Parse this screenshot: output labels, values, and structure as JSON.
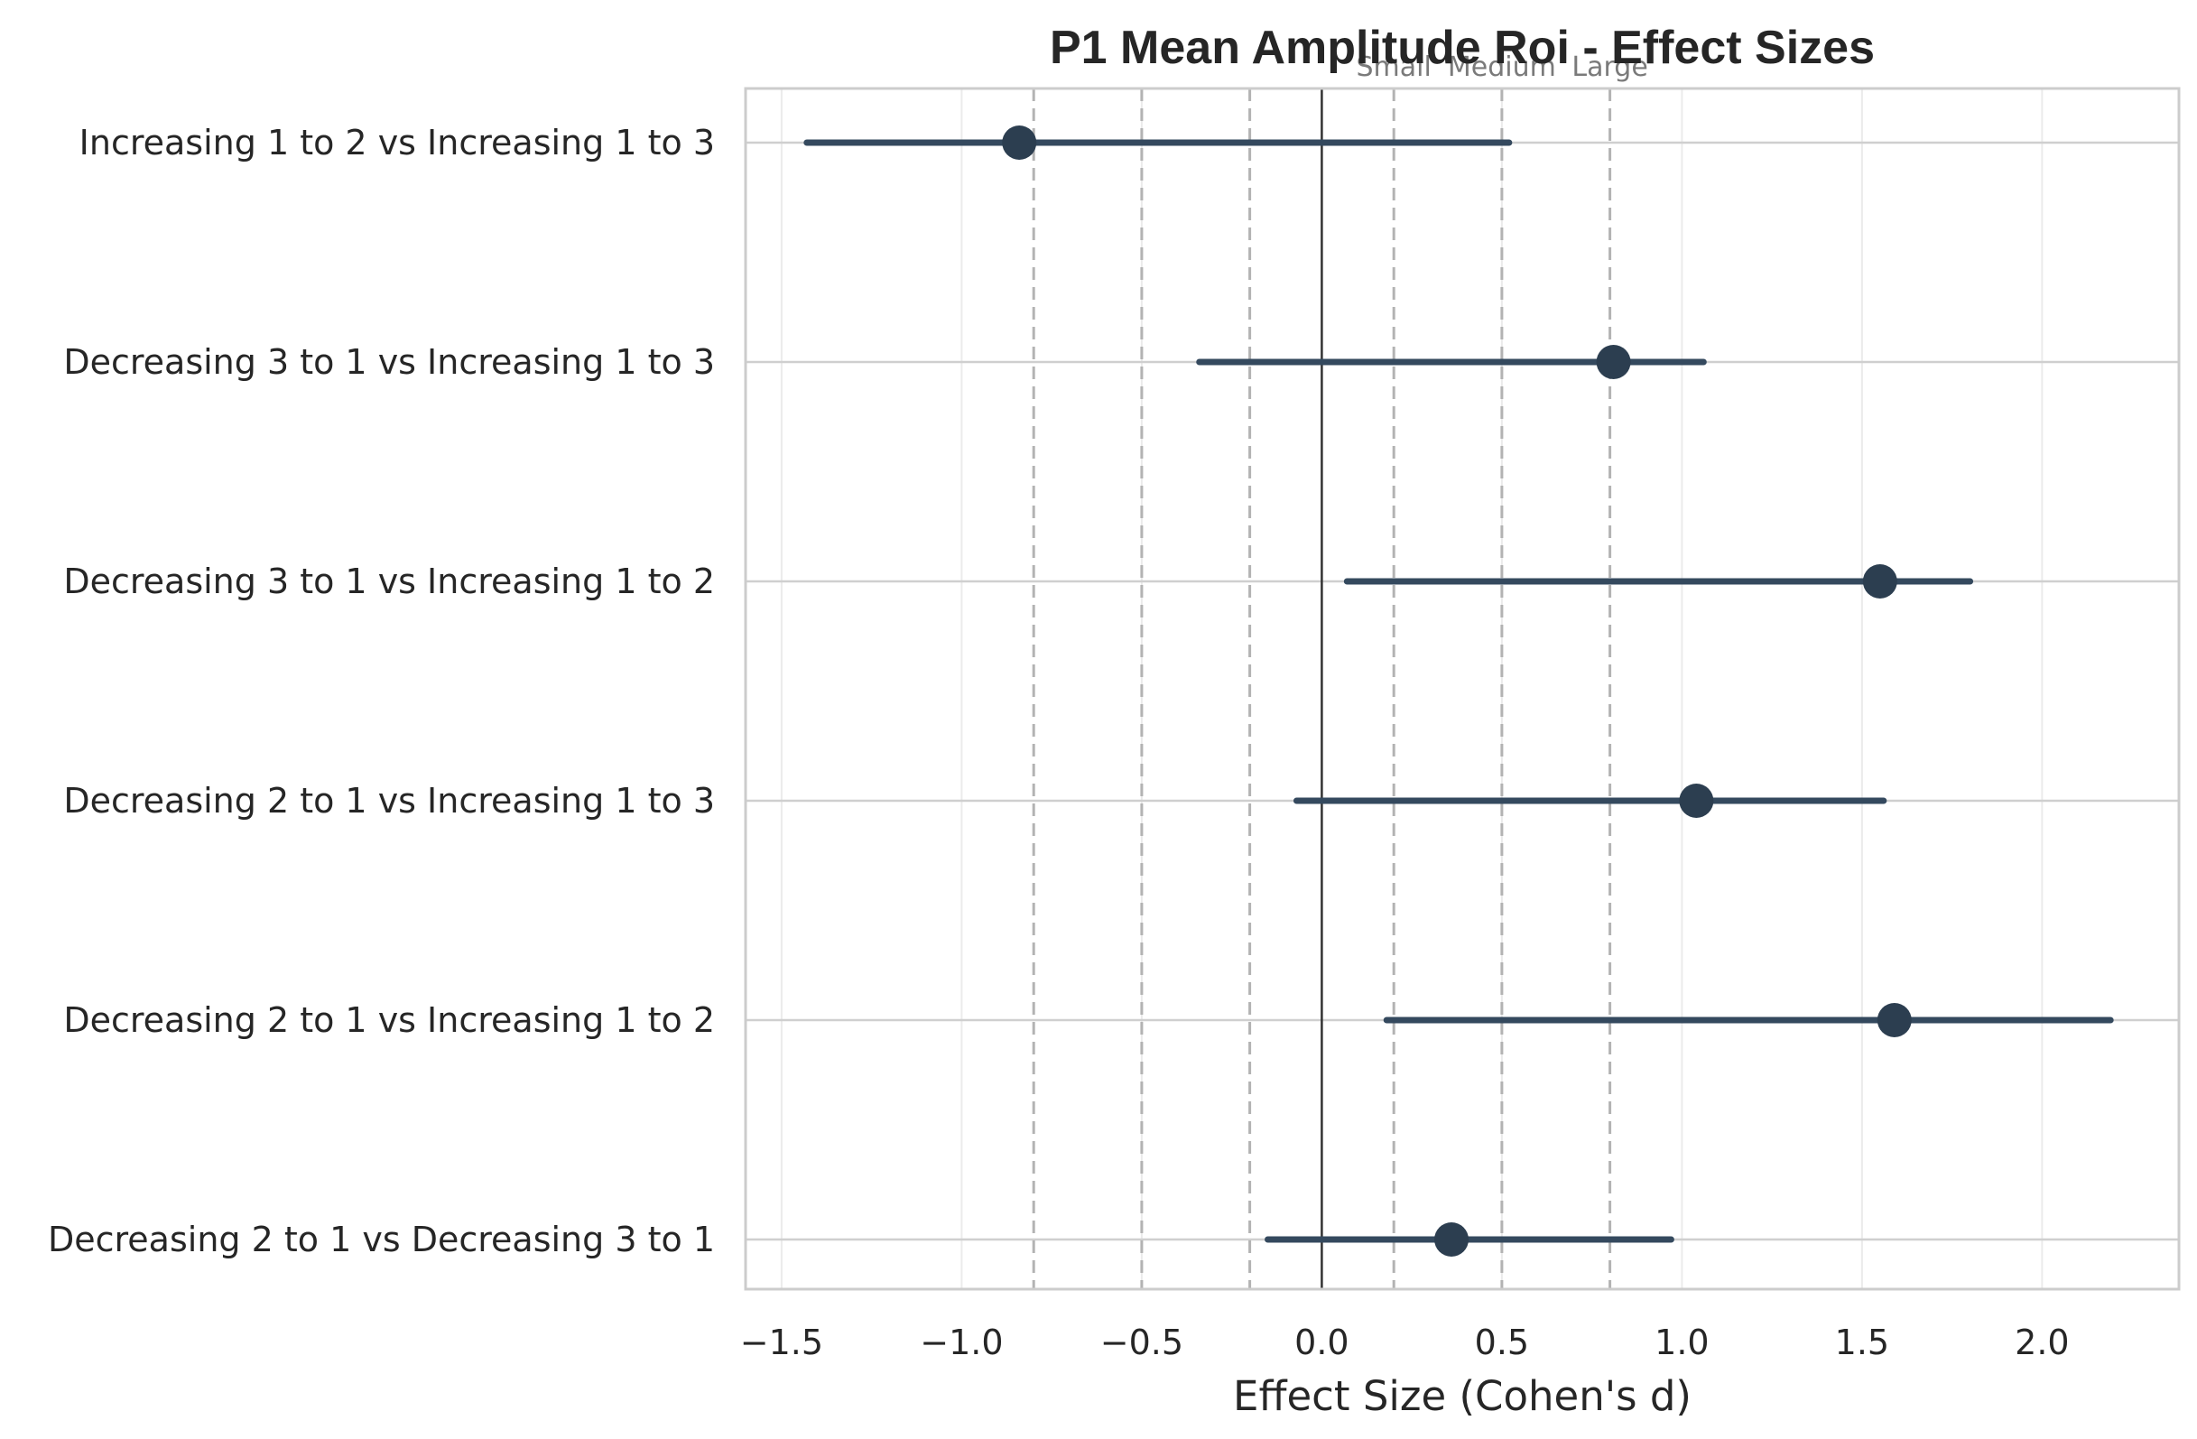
{
  "chart_data": {
    "type": "scatter",
    "title": "P1 Mean Amplitude Roi - Effect Sizes",
    "xlabel": "Effect Size (Cohen's d)",
    "ylabel": "",
    "xlim": [
      -1.6,
      2.38
    ],
    "xticks": [
      -1.5,
      -1.0,
      -0.5,
      0.0,
      0.5,
      1.0,
      1.5,
      2.0
    ],
    "xtick_labels": [
      "−1.5",
      "−1.0",
      "−0.5",
      "0.0",
      "0.5",
      "1.0",
      "1.5",
      "2.0"
    ],
    "grid": true,
    "zero_line": 0.0,
    "reference_lines": [
      -0.8,
      -0.5,
      -0.2,
      0.2,
      0.5,
      0.8
    ],
    "reference_labels": [
      {
        "text": "Small",
        "x": 0.2
      },
      {
        "text": "Medium",
        "x": 0.5
      },
      {
        "text": "Large",
        "x": 0.8
      }
    ],
    "marker_color": "#2c3e50",
    "line_color": "#34495e",
    "comparisons": [
      {
        "label": "Increasing 1 to 2 vs Increasing 1 to 3",
        "d": -0.84,
        "ci_low": -1.43,
        "ci_high": 0.52
      },
      {
        "label": "Decreasing 3 to 1 vs Increasing 1 to 3",
        "d": 0.81,
        "ci_low": -0.34,
        "ci_high": 1.06
      },
      {
        "label": "Decreasing 3 to 1 vs Increasing 1 to 2",
        "d": 1.55,
        "ci_low": 0.07,
        "ci_high": 1.8
      },
      {
        "label": "Decreasing 2 to 1 vs Increasing 1 to 3",
        "d": 1.04,
        "ci_low": -0.07,
        "ci_high": 1.56
      },
      {
        "label": "Decreasing 2 to 1 vs Increasing 1 to 2",
        "d": 1.59,
        "ci_low": 0.18,
        "ci_high": 2.19
      },
      {
        "label": "Decreasing 2 to 1 vs Decreasing 3 to 1",
        "d": 0.36,
        "ci_low": -0.15,
        "ci_high": 0.97
      }
    ]
  }
}
